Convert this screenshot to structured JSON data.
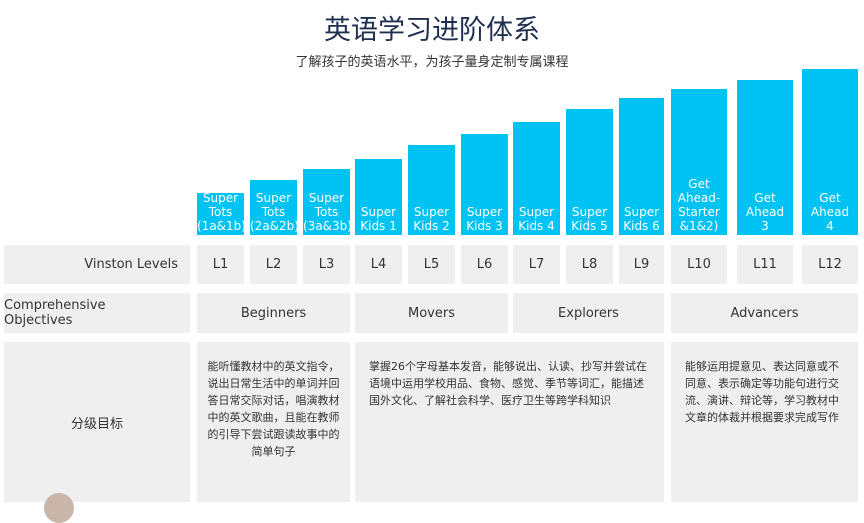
{
  "header": {
    "title": "英语学习进阶体系",
    "subtitle": "了解孩子的英语水平，为孩子量身定制专属课程"
  },
  "courses": [
    "Super\nTots\n(1a&1b)",
    "Super\nTots\n(2a&2b)",
    "Super\nTots\n(3a&3b)",
    "Super\nKids 1",
    "Super\nKids 2",
    "Super\nKids 3",
    "Super\nKids 4",
    "Super\nKids 5",
    "Super\nKids 6",
    "Get\nAhead-\nStarter\n&1&2)",
    "Get\nAhead\n3",
    "Get\nAhead\n4"
  ],
  "rows": {
    "levels_label": "Vinston Levels",
    "objectives_label": "Comprehensive Objectives",
    "goals_label": "分级目标"
  },
  "levels": [
    "L1",
    "L2",
    "L3",
    "L4",
    "L5",
    "L6",
    "L7",
    "L8",
    "L9",
    "L10",
    "L11",
    "L12"
  ],
  "objectives": [
    "Beginners",
    "Movers",
    "Explorers",
    "Advancers"
  ],
  "goals": [
    "能听懂教材中的英文指令，说出日常生活中的单词并回答日常交际对话，唱演教材中的英文歌曲，且能在教师的引导下尝试跟读故事中的简单句子",
    "掌握26个字母基本发音，能够说出、认读、抄写并尝试在语境中运用学校用品、食物、感觉、季节等词汇，能描述国外文化、了解社会科学、医疗卫生等跨学科知识",
    "能够运用提意见、表达同意或不同意、表示确定等功能句进行交流、演讲、辩论等，学习教材中文章的体裁并根据要求完成写作"
  ]
}
